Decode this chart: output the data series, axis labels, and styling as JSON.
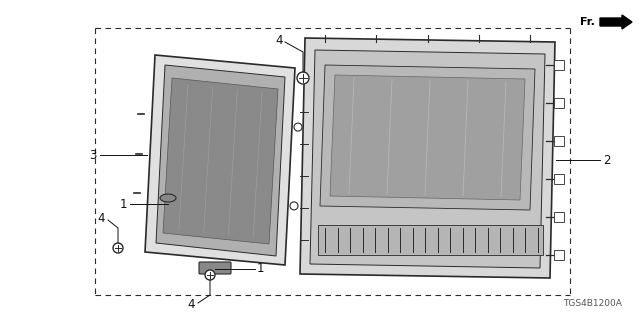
{
  "background_color": "#ffffff",
  "line_color": "#2a2a2a",
  "label_color": "#111111",
  "diagram_code": "TGS4B1200A",
  "figsize": [
    6.4,
    3.2
  ],
  "dpi": 100,
  "fr_text": "Fr.",
  "part_numbers": [
    "1",
    "1",
    "2",
    "3",
    "4",
    "4",
    "4"
  ]
}
